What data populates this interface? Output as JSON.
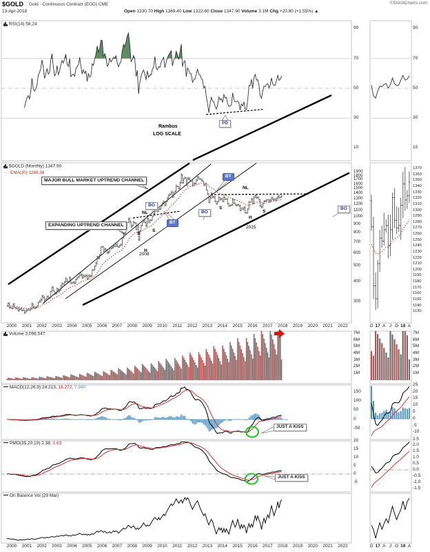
{
  "header": {
    "symbol": "$GOLD",
    "title": "Gold - Continuous Contract (EOD) CME",
    "credit": "©StockCharts.com",
    "date": "13-Apr-2018",
    "quote": {
      "open_label": "Open",
      "open": "1330.70",
      "high_label": "High",
      "high": "1369.40",
      "low_label": "Low",
      "low": "1322.60",
      "close_label": "Close",
      "close": "1347.90",
      "volume_label": "Volume",
      "volume": "3.1M",
      "chg_label": "Chg",
      "chg": "+20.80 (+1.55%) ▲"
    }
  },
  "panels": {
    "rsi_label": "RSI(14) 58.24",
    "price_label": "$GOLD (Monthly) 1347.90",
    "ema_label": "EMA(20) 1286.38",
    "volume_label": "Volume 3,096,547",
    "macd_label": "MACD(12,26,9)",
    "macd_v1": "24.213",
    "macd_v2": "16.272",
    "macd_v3": "7.940",
    "pmo_label": "PMO(35,20,10)",
    "pmo_v1": "2.38",
    "pmo_v2": "1.63",
    "obv_label": "On Balance Vol (29 Mar)"
  },
  "annotations": {
    "major_channel": "MAJOR BULL MARKET UPTREND CHANNEL",
    "expanding_channel": "EXPANDING UPTREND CHANNEL",
    "bo": "BO",
    "bt": "BT",
    "nl": "NL",
    "shoulder": "S",
    "head": "H",
    "year_2008": "2008",
    "year_2015": "2015",
    "pd": "PD",
    "rambus": "Rambus",
    "log_scale": "LOG SCALE",
    "kiss": "JUST A KISS"
  },
  "axes": {
    "rsi": [
      90,
      70,
      50,
      30,
      10
    ],
    "price": [
      1900,
      1800,
      1700,
      1600,
      1500,
      1400,
      1300,
      1200,
      1100,
      1000,
      900,
      800,
      700,
      600,
      500,
      400,
      300
    ],
    "price_mini": [
      1370,
      1360,
      1350,
      1340,
      1330,
      1320,
      1310,
      1300,
      1290,
      1280,
      1270,
      1260,
      1250,
      1240,
      1230,
      1220,
      1210,
      1200,
      1190,
      1180,
      1170,
      1160,
      1150,
      1140,
      1130
    ],
    "volume": [
      "7M",
      "6M",
      "5M",
      "4M",
      "3M",
      "2M",
      "1M"
    ],
    "macd": [
      150,
      100,
      50,
      0,
      -50
    ],
    "macd_mini": [
      25,
      20,
      15,
      10,
      5,
      0,
      -5,
      -10
    ],
    "pmo": [
      20,
      15,
      10,
      5,
      0,
      -5
    ],
    "pmo_mini": [
      "2.5",
      "2.0",
      "1.5",
      "1.0",
      "0.5",
      "0.0",
      "-0.5",
      "-1.0",
      "-1.5"
    ],
    "years": [
      2000,
      2001,
      2002,
      2003,
      2004,
      2005,
      2006,
      2007,
      2008,
      2009,
      2010,
      2011,
      2012,
      2013,
      2014,
      2015,
      2016,
      2017,
      2018,
      2019,
      2020,
      2021,
      2022
    ],
    "mini_months": [
      {
        "t": "O",
        "b": 0
      },
      {
        "t": "17",
        "b": 1
      },
      {
        "t": "A",
        "b": 0
      },
      {
        "t": "J",
        "b": 0
      },
      {
        "t": "O",
        "b": 0
      },
      {
        "t": "18",
        "b": 1
      },
      {
        "t": "A",
        "b": 0
      }
    ]
  },
  "chart_data": {
    "type": "bar",
    "title": "$GOLD Gold - Continuous Contract (EOD) CME, monthly OHLC bars, log scale, with EMA(20) overlay; panels: RSI(14), Volume, MACD(12,26,9), PMO(35,20,10), On Balance Volume; right column shows zoom of last 19 months (Oct 2016 - Apr 2018)",
    "timeframe": "monthly",
    "start": "2000-01",
    "end": "2018-04",
    "scale": "log",
    "price_range": [
      256,
      1900
    ],
    "close": [
      283,
      293,
      276,
      275,
      272,
      289,
      276,
      274,
      273,
      264,
      269,
      272,
      264,
      266,
      257,
      263,
      267,
      270,
      265,
      273,
      291,
      278,
      274,
      277,
      282,
      297,
      301,
      308,
      326,
      318,
      304,
      312,
      323,
      316,
      319,
      347,
      367,
      350,
      334,
      339,
      361,
      346,
      354,
      375,
      388,
      384,
      398,
      416,
      400,
      396,
      423,
      388,
      393,
      395,
      391,
      412,
      420,
      425,
      453,
      438,
      422,
      435,
      428,
      435,
      414,
      437,
      429,
      433,
      473,
      470,
      495,
      517,
      569,
      556,
      582,
      654,
      653,
      613,
      634,
      623,
      599,
      607,
      647,
      636,
      650,
      664,
      661,
      677,
      659,
      650,
      666,
      673,
      743,
      795,
      789,
      838,
      923,
      975,
      933,
      871,
      887,
      930,
      918,
      833,
      884,
      724,
      819,
      884,
      928,
      952,
      922,
      883,
      975,
      927,
      953,
      953,
      1008,
      1040,
      1175,
      1096,
      1083,
      1118,
      1114,
      1180,
      1215,
      1244,
      1181,
      1246,
      1307,
      1357,
      1386,
      1421,
      1327,
      1411,
      1439,
      1556,
      1536,
      1502,
      1628,
      1826,
      1622,
      1722,
      1746,
      1566,
      1737,
      1711,
      1672,
      1664,
      1564,
      1604,
      1615,
      1687,
      1774,
      1719,
      1713,
      1676,
      1661,
      1576,
      1595,
      1472,
      1387,
      1224,
      1313,
      1396,
      1327,
      1323,
      1250,
      1202,
      1240,
      1321,
      1284,
      1296,
      1246,
      1322,
      1281,
      1287,
      1211,
      1173,
      1176,
      1184,
      1279,
      1213,
      1183,
      1184,
      1190,
      1172,
      1095,
      1135,
      1114,
      1141,
      1065,
      1060,
      1116,
      1234,
      1233,
      1290,
      1215,
      1321,
      1357,
      1311,
      1317,
      1273,
      1174,
      1152,
      1211,
      1254,
      1249,
      1268,
      1275,
      1242,
      1268,
      1322,
      1284,
      1271,
      1275,
      1309,
      1345,
      1318,
      1325,
      1348
    ],
    "last_close": 1347.9,
    "volume_last": 3096547,
    "volume_axis_millions": [
      1,
      7
    ],
    "indicators": {
      "rsi14_last": 58.24,
      "ema20_last": 1286.38,
      "macd_last": [
        24.213,
        16.272,
        7.94
      ],
      "pmo_last": [
        2.38,
        1.63
      ]
    },
    "mini_window_months": 19
  },
  "colors": {
    "bar": "#4d4d4d",
    "ema": "#cc2222",
    "vol_up": "#6e6e6e",
    "vol_down": "#c14e4e",
    "macd_hist": "#4d93c1",
    "signal": "#e03030",
    "line": "#111111",
    "rsi_over_fill": "#5f8c62",
    "rsi_under_fill": "#cc5555",
    "green_circle": "#1dc91d",
    "red_arrow": "#dd1111",
    "badge_blue": "#5b79cf",
    "blue_text": "#2333bb",
    "grid": "#cfcfcf"
  }
}
